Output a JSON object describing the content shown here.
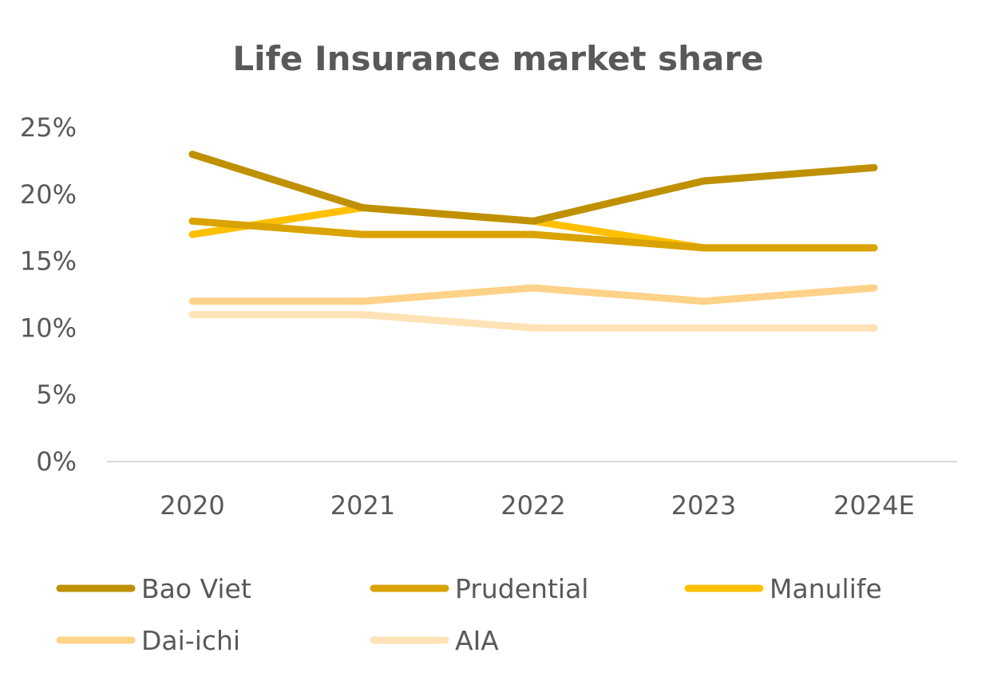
{
  "chart_data": {
    "type": "line",
    "title": "Life Insurance market share",
    "categories": [
      "2020",
      "2021",
      "2022",
      "2023",
      "2024E"
    ],
    "y_ticks": [
      "0%",
      "5%",
      "10%",
      "15%",
      "20%",
      "25%"
    ],
    "ylim": [
      0,
      25
    ],
    "y_unit": "%",
    "grid": false,
    "legend_position": "bottom",
    "series": [
      {
        "name": "Bao Viet",
        "color": "#BF9000",
        "values": [
          23,
          19,
          18,
          21,
          22
        ]
      },
      {
        "name": "Prudential",
        "color": "#D9A300",
        "values": [
          18,
          17,
          17,
          16,
          16
        ]
      },
      {
        "name": "Manulife",
        "color": "#FFC000",
        "values": [
          17,
          19,
          18,
          16,
          16
        ]
      },
      {
        "name": "Dai-ichi",
        "color": "#FFD28A",
        "values": [
          12,
          12,
          13,
          12,
          13
        ]
      },
      {
        "name": "AIA",
        "color": "#FFE2B5",
        "values": [
          11,
          11,
          10,
          10,
          10
        ]
      }
    ]
  }
}
